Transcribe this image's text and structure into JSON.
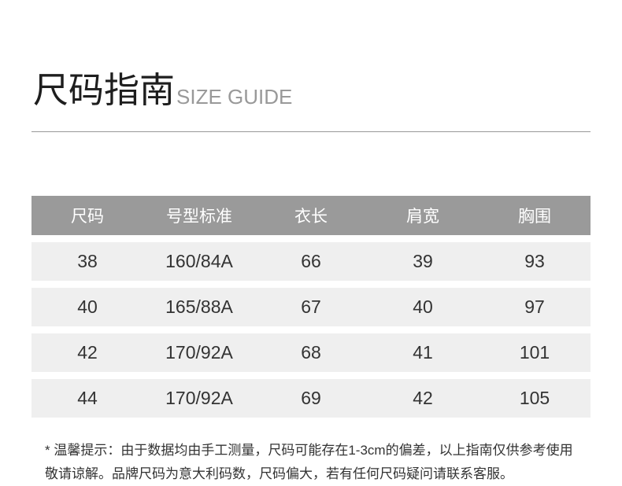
{
  "title": {
    "cn": "尺码指南",
    "en": "SIZE GUIDE"
  },
  "table": {
    "headers": [
      "尺码",
      "号型标准",
      "衣长",
      "肩宽",
      "胸围"
    ],
    "rows": [
      [
        "38",
        "160/84A",
        "66",
        "39",
        "93"
      ],
      [
        "40",
        "165/88A",
        "67",
        "40",
        "97"
      ],
      [
        "42",
        "170/92A",
        "68",
        "41",
        "101"
      ],
      [
        "44",
        "170/92A",
        "69",
        "42",
        "105"
      ]
    ]
  },
  "note": {
    "line1": "* 温馨提示：由于数据均由手工测量，尺码可能存在1-3cm的偏差，以上指南仅供参考使用",
    "line2": "敬请谅解。品牌尺码为意大利码数，尺码偏大，若有任何尺码疑问请联系客服。"
  },
  "colors": {
    "header_bg": "#9a9a9a",
    "row_bg": "#efefef",
    "divider": "#999999"
  }
}
